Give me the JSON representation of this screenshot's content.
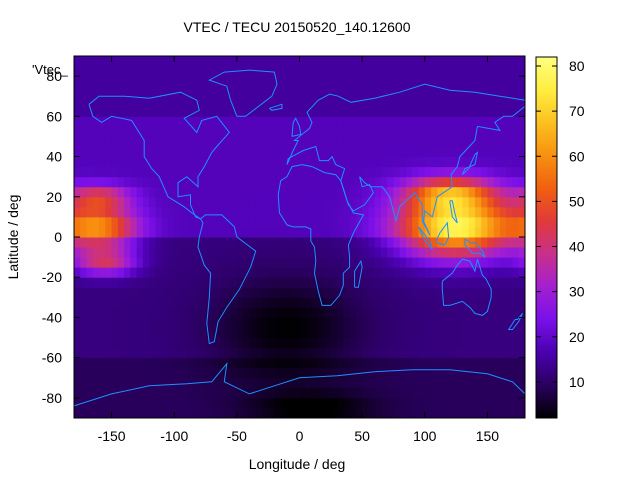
{
  "chart_data": {
    "type": "heatmap",
    "title": "VTEC / TECU 20150520_140.12600",
    "xlabel": "Longitude / deg",
    "ylabel": "Latitude / deg",
    "legend_label": "'Vtec_",
    "xlim": [
      -180,
      180
    ],
    "ylim": [
      -90,
      90
    ],
    "x_ticks": [
      -150,
      -100,
      -50,
      0,
      50,
      100,
      150
    ],
    "y_ticks": [
      -80,
      -60,
      -40,
      -20,
      0,
      20,
      40,
      60,
      80
    ],
    "x_tick_labels": [
      "-150",
      "-100",
      "-50",
      "0",
      "50",
      "100",
      "150"
    ],
    "y_tick_labels": [
      "-80",
      "-60",
      "-40",
      "-20",
      "0",
      "20",
      "40",
      "60",
      "80"
    ],
    "colorbar": {
      "range": [
        2,
        82
      ],
      "ticks": [
        10,
        20,
        30,
        40,
        50,
        60,
        70,
        80
      ],
      "tick_labels": [
        "10",
        "20",
        "30",
        "40",
        "50",
        "60",
        "70",
        "80"
      ],
      "palette": [
        "#000000",
        "#2a0060",
        "#4a00b0",
        "#7a10e8",
        "#a420d0",
        "#c8308a",
        "#e03a3a",
        "#f06010",
        "#f89010",
        "#fcc020",
        "#ffee40",
        "#ffff80"
      ]
    },
    "grid": false,
    "grid_resolution_deg": [
      5,
      5
    ],
    "background_field": {
      "north_mid_lat": 18,
      "south_mid_lat": 12,
      "south_polar": 9,
      "north_polar": 15
    },
    "hotspots": [
      {
        "lon": 125,
        "lat": 5,
        "dlon": 45,
        "dlat": 15,
        "amp": 60
      },
      {
        "lon": 120,
        "lat": 22,
        "dlon": 35,
        "dlat": 8,
        "amp": 35
      },
      {
        "lon": -160,
        "lat": 5,
        "dlon": 30,
        "dlat": 10,
        "amp": 40
      },
      {
        "lon": -155,
        "lat": -12,
        "dlon": 25,
        "dlat": 7,
        "amp": 28
      },
      {
        "lon": -160,
        "lat": 20,
        "dlon": 25,
        "dlat": 6,
        "amp": 25
      }
    ],
    "low_regions": [
      {
        "lon": -10,
        "lat": -45,
        "dlon": 60,
        "dlat": 25,
        "amp": -10
      },
      {
        "lon": 10,
        "lat": -85,
        "dlon": 50,
        "dlat": 8,
        "amp": -8
      }
    ],
    "coastline_color": "#1e90ff",
    "coastlines": [
      [
        [
          -168,
          66
        ],
        [
          -160,
          70
        ],
        [
          -140,
          70
        ],
        [
          -120,
          69
        ],
        [
          -95,
          72
        ],
        [
          -82,
          68
        ],
        [
          -80,
          63
        ],
        [
          -92,
          59
        ],
        [
          -82,
          52
        ],
        [
          -78,
          58
        ],
        [
          -66,
          60
        ],
        [
          -56,
          52
        ],
        [
          -66,
          45
        ],
        [
          -70,
          42
        ],
        [
          -76,
          35
        ],
        [
          -81,
          30
        ],
        [
          -81,
          25
        ],
        [
          -90,
          30
        ],
        [
          -97,
          27
        ],
        [
          -97,
          20
        ],
        [
          -87,
          21
        ],
        [
          -87,
          16
        ],
        [
          -83,
          10
        ],
        [
          -79,
          9
        ],
        [
          -86,
          12
        ],
        [
          -92,
          15
        ],
        [
          -105,
          20
        ],
        [
          -112,
          30
        ],
        [
          -118,
          34
        ],
        [
          -124,
          40
        ],
        [
          -124,
          48
        ],
        [
          -134,
          58
        ],
        [
          -150,
          60
        ],
        [
          -158,
          57
        ],
        [
          -165,
          60
        ],
        [
          -168,
          66
        ]
      ],
      [
        [
          -79,
          9
        ],
        [
          -75,
          11
        ],
        [
          -62,
          11
        ],
        [
          -52,
          5
        ],
        [
          -50,
          0
        ],
        [
          -35,
          -7
        ],
        [
          -39,
          -15
        ],
        [
          -48,
          -26
        ],
        [
          -58,
          -35
        ],
        [
          -65,
          -42
        ],
        [
          -68,
          -52
        ],
        [
          -72,
          -53
        ],
        [
          -74,
          -43
        ],
        [
          -72,
          -30
        ],
        [
          -71,
          -18
        ],
        [
          -76,
          -14
        ],
        [
          -81,
          -5
        ],
        [
          -80,
          0
        ],
        [
          -77,
          7
        ],
        [
          -79,
          9
        ]
      ],
      [
        [
          -10,
          36
        ],
        [
          -5,
          43
        ],
        [
          -1,
          48
        ],
        [
          -4,
          48
        ],
        [
          2,
          51
        ],
        [
          8,
          54
        ],
        [
          10,
          57
        ],
        [
          6,
          62
        ],
        [
          15,
          68
        ],
        [
          24,
          71
        ],
        [
          31,
          70
        ],
        [
          41,
          67
        ],
        [
          60,
          69
        ],
        [
          80,
          72
        ],
        [
          100,
          76
        ],
        [
          120,
          73
        ],
        [
          140,
          72
        ],
        [
          160,
          70
        ],
        [
          180,
          68
        ],
        [
          180,
          65
        ],
        [
          170,
          60
        ],
        [
          163,
          60
        ],
        [
          156,
          57
        ],
        [
          160,
          53
        ],
        [
          142,
          55
        ],
        [
          140,
          48
        ],
        [
          128,
          40
        ],
        [
          126,
          35
        ],
        [
          121,
          31
        ],
        [
          122,
          25
        ],
        [
          110,
          20
        ],
        [
          106,
          10
        ],
        [
          100,
          13
        ],
        [
          99,
          8
        ],
        [
          104,
          1
        ],
        [
          98,
          8
        ],
        [
          98,
          16
        ],
        [
          92,
          22
        ],
        [
          80,
          15
        ],
        [
          77,
          8
        ],
        [
          72,
          20
        ],
        [
          66,
          25
        ],
        [
          57,
          25
        ],
        [
          52,
          27
        ],
        [
          48,
          30
        ],
        [
          50,
          25
        ],
        [
          56,
          26
        ],
        [
          59,
          22
        ],
        [
          52,
          16
        ],
        [
          43,
          13
        ],
        [
          39,
          16
        ],
        [
          33,
          28
        ],
        [
          36,
          34
        ],
        [
          29,
          36
        ],
        [
          26,
          40
        ],
        [
          23,
          38
        ],
        [
          16,
          38
        ],
        [
          13,
          45
        ],
        [
          8,
          44
        ],
        [
          3,
          43
        ],
        [
          -9,
          39
        ],
        [
          -10,
          36
        ]
      ],
      [
        [
          -17,
          21
        ],
        [
          -16,
          12
        ],
        [
          -10,
          6
        ],
        [
          -5,
          5
        ],
        [
          5,
          5
        ],
        [
          9,
          4
        ],
        [
          9,
          -2
        ],
        [
          12,
          -5
        ],
        [
          13,
          -12
        ],
        [
          12,
          -18
        ],
        [
          15,
          -27
        ],
        [
          18,
          -34
        ],
        [
          25,
          -34
        ],
        [
          32,
          -29
        ],
        [
          35,
          -24
        ],
        [
          35,
          -18
        ],
        [
          40,
          -15
        ],
        [
          40,
          -10
        ],
        [
          39,
          -4
        ],
        [
          43,
          2
        ],
        [
          51,
          11
        ],
        [
          43,
          12
        ],
        [
          38,
          18
        ],
        [
          33,
          28
        ],
        [
          29,
          31
        ],
        [
          20,
          32
        ],
        [
          10,
          35
        ],
        [
          2,
          36
        ],
        [
          -6,
          35
        ],
        [
          -10,
          30
        ],
        [
          -15,
          28
        ],
        [
          -17,
          21
        ]
      ],
      [
        [
          114,
          -22
        ],
        [
          114,
          -26
        ],
        [
          115,
          -34
        ],
        [
          120,
          -34
        ],
        [
          130,
          -32
        ],
        [
          136,
          -35
        ],
        [
          140,
          -38
        ],
        [
          146,
          -39
        ],
        [
          150,
          -37
        ],
        [
          153,
          -30
        ],
        [
          153,
          -26
        ],
        [
          149,
          -21
        ],
        [
          146,
          -19
        ],
        [
          142,
          -11
        ],
        [
          140,
          -17
        ],
        [
          136,
          -12
        ],
        [
          130,
          -11
        ],
        [
          126,
          -14
        ],
        [
          122,
          -18
        ],
        [
          114,
          -22
        ]
      ],
      [
        [
          -180,
          -84
        ],
        [
          -150,
          -78
        ],
        [
          -120,
          -74
        ],
        [
          -90,
          -73
        ],
        [
          -70,
          -72
        ],
        [
          -58,
          -63
        ],
        [
          -60,
          -72
        ],
        [
          -40,
          -78
        ],
        [
          -20,
          -74
        ],
        [
          0,
          -70
        ],
        [
          30,
          -69
        ],
        [
          60,
          -67
        ],
        [
          90,
          -66
        ],
        [
          120,
          -66
        ],
        [
          150,
          -68
        ],
        [
          170,
          -72
        ],
        [
          180,
          -78
        ]
      ],
      [
        [
          -50,
          60
        ],
        [
          -43,
          60
        ],
        [
          -22,
          70
        ],
        [
          -18,
          76
        ],
        [
          -20,
          82
        ],
        [
          -40,
          83
        ],
        [
          -60,
          82
        ],
        [
          -72,
          78
        ],
        [
          -58,
          75
        ],
        [
          -55,
          68
        ],
        [
          -50,
          60
        ]
      ],
      [
        [
          44,
          -25
        ],
        [
          47,
          -25
        ],
        [
          50,
          -15
        ],
        [
          49,
          -12
        ],
        [
          44,
          -17
        ],
        [
          44,
          -25
        ]
      ],
      [
        [
          -6,
          50
        ],
        [
          1,
          51
        ],
        [
          0,
          55
        ],
        [
          -3,
          59
        ],
        [
          -5,
          57
        ],
        [
          -6,
          50
        ]
      ],
      [
        [
          130,
          31
        ],
        [
          132,
          34
        ],
        [
          140,
          36
        ],
        [
          142,
          42
        ],
        [
          140,
          41
        ],
        [
          135,
          34
        ],
        [
          130,
          31
        ]
      ],
      [
        [
          95,
          5
        ],
        [
          104,
          -2
        ],
        [
          106,
          -6
        ],
        [
          100,
          -2
        ],
        [
          95,
          5
        ]
      ],
      [
        [
          109,
          -2
        ],
        [
          112,
          2
        ],
        [
          118,
          7
        ],
        [
          119,
          0
        ],
        [
          116,
          -4
        ],
        [
          110,
          -3
        ],
        [
          109,
          -2
        ]
      ],
      [
        [
          132,
          -1
        ],
        [
          137,
          -3
        ],
        [
          141,
          -3
        ],
        [
          146,
          -7
        ],
        [
          148,
          -10
        ],
        [
          144,
          -8
        ],
        [
          138,
          -8
        ],
        [
          132,
          -4
        ],
        [
          132,
          -1
        ]
      ],
      [
        [
          -24,
          64
        ],
        [
          -14,
          66
        ],
        [
          -14,
          64
        ],
        [
          -22,
          63
        ],
        [
          -24,
          64
        ]
      ],
      [
        [
          172,
          -41
        ],
        [
          174,
          -41
        ],
        [
          178,
          -38
        ],
        [
          175,
          -42
        ],
        [
          170,
          -46
        ],
        [
          167,
          -46
        ],
        [
          172,
          -41
        ]
      ],
      [
        [
          120,
          18
        ],
        [
          122,
          18
        ],
        [
          124,
          12
        ],
        [
          126,
          7
        ],
        [
          122,
          10
        ],
        [
          120,
          18
        ]
      ]
    ]
  }
}
